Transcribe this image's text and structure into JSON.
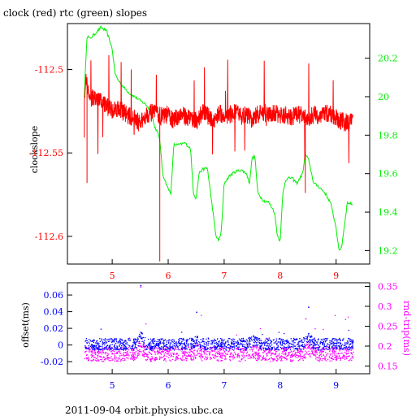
{
  "header": {
    "title": "clock (red) rtc (green) slopes"
  },
  "footer": {
    "text": "2011-09-04 orbit.physics.ubc.ca"
  },
  "colors": {
    "clock": "#ff0000",
    "rtc": "#00ee00",
    "offset": "#0000ff",
    "rnd_trip": "#ff00ff",
    "frame": "#000000"
  },
  "chart_data": [
    {
      "type": "line",
      "title": "clock (red) rtc (green) slopes",
      "xlim": [
        4.2,
        9.6
      ],
      "xticks": [
        "5",
        "6",
        "7",
        "8",
        "9"
      ],
      "xtick_values": [
        5,
        6,
        7,
        8,
        9
      ],
      "ylabel_left": "clockslope",
      "ylim_left": [
        -112.6166,
        -112.4725
      ],
      "yticks_left": [
        "-112.5",
        "-112.55",
        "-112.6"
      ],
      "ytick_values_left": [
        -112.5,
        -112.55,
        -112.6
      ],
      "ylim_right": [
        19.13,
        20.38
      ],
      "yticks_right": [
        "20.2",
        "20",
        "19.8",
        "19.6",
        "19.4",
        "19.2"
      ],
      "ytick_values_right": [
        20.2,
        20.0,
        19.8,
        19.6,
        19.4,
        19.2
      ],
      "series": [
        {
          "name": "clock (red)",
          "axis": "left",
          "color": "#ff0000",
          "x": [
            4.5,
            4.53,
            4.6,
            4.7,
            4.8,
            4.9,
            5.0,
            5.1,
            5.2,
            5.3,
            5.4,
            5.45,
            5.5,
            5.6,
            5.7,
            5.8,
            5.9,
            6.0,
            6.1,
            6.2,
            6.3,
            6.4,
            6.5,
            6.6,
            6.7,
            6.8,
            6.9,
            7.0,
            7.1,
            7.2,
            7.3,
            7.4,
            7.5,
            7.6,
            7.7,
            7.8,
            7.9,
            8.0,
            8.1,
            8.2,
            8.3,
            8.4,
            8.5,
            8.6,
            8.7,
            8.8,
            8.9,
            9.0,
            9.1,
            9.2,
            9.3
          ],
          "y": [
            -112.516,
            -112.505,
            -112.517,
            -112.518,
            -112.519,
            -112.522,
            -112.524,
            -112.523,
            -112.525,
            -112.528,
            -112.529,
            -112.531,
            -112.533,
            -112.527,
            -112.526,
            -112.527,
            -112.528,
            -112.527,
            -112.531,
            -112.527,
            -112.528,
            -112.529,
            -112.531,
            -112.526,
            -112.527,
            -112.532,
            -112.526,
            -112.528,
            -112.527,
            -112.526,
            -112.528,
            -112.527,
            -112.53,
            -112.527,
            -112.526,
            -112.527,
            -112.526,
            -112.528,
            -112.527,
            -112.529,
            -112.526,
            -112.528,
            -112.53,
            -112.527,
            -112.528,
            -112.526,
            -112.527,
            -112.529,
            -112.531,
            -112.532,
            -112.531
          ]
        },
        {
          "name": "rtc (green)",
          "axis": "right",
          "color": "#00ee00",
          "x": [
            4.5,
            4.55,
            4.6,
            4.7,
            4.8,
            4.9,
            5.0,
            5.05,
            5.1,
            5.2,
            5.3,
            5.4,
            5.5,
            5.6,
            5.7,
            5.75,
            5.8,
            5.85,
            5.9,
            6.0,
            6.05,
            6.1,
            6.2,
            6.3,
            6.4,
            6.45,
            6.5,
            6.55,
            6.6,
            6.7,
            6.8,
            6.85,
            6.9,
            6.95,
            7.0,
            7.1,
            7.2,
            7.3,
            7.4,
            7.45,
            7.5,
            7.55,
            7.6,
            7.7,
            7.8,
            7.9,
            7.95,
            8.0,
            8.05,
            8.1,
            8.2,
            8.3,
            8.4,
            8.45,
            8.5,
            8.6,
            8.7,
            8.8,
            8.9,
            9.0,
            9.05,
            9.1,
            9.2,
            9.3
          ],
          "y": [
            20.0,
            20.32,
            20.3,
            20.33,
            20.36,
            20.34,
            20.25,
            20.12,
            20.09,
            20.05,
            20.02,
            20.0,
            19.98,
            19.96,
            19.92,
            19.85,
            19.82,
            19.78,
            19.6,
            19.52,
            19.5,
            19.75,
            19.75,
            19.76,
            19.73,
            19.5,
            19.47,
            19.6,
            19.62,
            19.63,
            19.4,
            19.28,
            19.25,
            19.3,
            19.55,
            19.59,
            19.61,
            19.62,
            19.6,
            19.55,
            19.68,
            19.69,
            19.5,
            19.46,
            19.45,
            19.4,
            19.28,
            19.25,
            19.5,
            19.57,
            19.58,
            19.55,
            19.6,
            19.7,
            19.68,
            19.55,
            19.53,
            19.5,
            19.45,
            19.32,
            19.2,
            19.22,
            19.45,
            19.44
          ]
        }
      ]
    },
    {
      "type": "scatter",
      "xlim": [
        4.2,
        9.6
      ],
      "xticks": [
        "5",
        "6",
        "7",
        "8",
        "9"
      ],
      "xtick_values": [
        5,
        6,
        7,
        8,
        9
      ],
      "ylabel_left": "offset(ms)",
      "ylim_left": [
        -0.0345,
        0.0747
      ],
      "yticks_left": [
        "0.06",
        "0.04",
        "0.02",
        "0",
        "-0.02"
      ],
      "ytick_values_left": [
        0.06,
        0.04,
        0.02,
        0,
        -0.02
      ],
      "ylabel_right": "rnd-trip(ms)",
      "ylim_right": [
        0.1306,
        0.3592
      ],
      "yticks_right": [
        "0.35",
        "0.3",
        "0.25",
        "0.2",
        "0.15"
      ],
      "ytick_values_right": [
        0.35,
        0.3,
        0.25,
        0.2,
        0.15
      ],
      "series": [
        {
          "name": "offset(ms)",
          "axis": "left",
          "color": "#0000ff",
          "x": [
            4.5,
            4.6,
            4.7,
            4.8,
            4.9,
            5.0,
            5.1,
            5.2,
            5.3,
            5.4,
            5.5,
            5.6,
            5.7,
            5.8,
            5.9,
            6.0,
            6.1,
            6.2,
            6.3,
            6.4,
            6.5,
            6.6,
            6.7,
            6.8,
            6.9,
            7.0,
            7.1,
            7.2,
            7.3,
            7.4,
            7.5,
            7.6,
            7.7,
            7.8,
            7.9,
            8.0,
            8.1,
            8.2,
            8.3,
            8.4,
            8.5,
            8.6,
            8.7,
            8.8,
            8.9,
            9.0,
            9.1,
            9.2,
            9.3
          ],
          "y": [
            0.002,
            0.001,
            0.002,
            0.001,
            0.002,
            0.001,
            0.002,
            0.001,
            0.002,
            0.001,
            0.01,
            0.002,
            0.001,
            0.002,
            0.001,
            0.002,
            0.001,
            0.002,
            0.001,
            0.002,
            0.006,
            0.001,
            0.002,
            0.001,
            0.002,
            0.001,
            0.002,
            0.001,
            0.002,
            0.001,
            0.006,
            0.002,
            0.001,
            0.002,
            0.001,
            0.002,
            0.001,
            0.002,
            0.001,
            0.002,
            0.008,
            0.002,
            0.001,
            0.002,
            0.001,
            0.002,
            0.001,
            0.002,
            0.001
          ]
        },
        {
          "name": "rnd-trip(ms)",
          "axis": "right",
          "color": "#ff00ff",
          "x": [
            4.5,
            4.6,
            4.7,
            4.8,
            4.9,
            5.0,
            5.1,
            5.2,
            5.3,
            5.4,
            5.5,
            5.6,
            5.7,
            5.8,
            5.9,
            6.0,
            6.1,
            6.2,
            6.3,
            6.4,
            6.5,
            6.6,
            6.7,
            6.8,
            6.9,
            7.0,
            7.1,
            7.2,
            7.3,
            7.4,
            7.5,
            7.6,
            7.7,
            7.8,
            7.9,
            8.0,
            8.1,
            8.2,
            8.3,
            8.4,
            8.5,
            8.6,
            8.7,
            8.8,
            8.9,
            9.0,
            9.1,
            9.2,
            9.3
          ],
          "y": [
            0.185,
            0.18,
            0.182,
            0.179,
            0.183,
            0.181,
            0.18,
            0.182,
            0.181,
            0.183,
            0.2,
            0.182,
            0.18,
            0.181,
            0.183,
            0.18,
            0.182,
            0.181,
            0.183,
            0.18,
            0.19,
            0.182,
            0.181,
            0.183,
            0.18,
            0.182,
            0.181,
            0.183,
            0.18,
            0.182,
            0.188,
            0.181,
            0.183,
            0.18,
            0.182,
            0.181,
            0.183,
            0.18,
            0.182,
            0.181,
            0.195,
            0.183,
            0.18,
            0.182,
            0.181,
            0.183,
            0.18,
            0.182,
            0.181
          ]
        }
      ]
    }
  ]
}
